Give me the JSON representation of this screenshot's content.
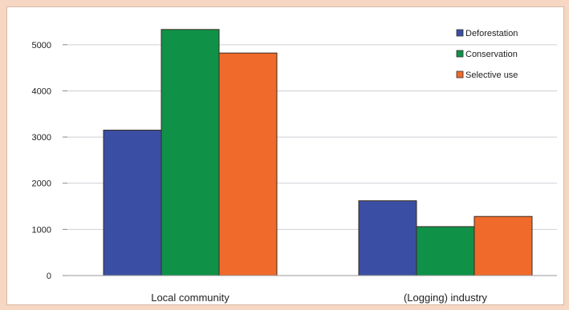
{
  "chart_data": {
    "type": "bar",
    "categories": [
      "Local community",
      "(Logging) industry"
    ],
    "series": [
      {
        "name": "Deforestation",
        "color": "#3a4fa3",
        "values": [
          3150,
          1620
        ]
      },
      {
        "name": "Conservation",
        "color": "#0f9148",
        "values": [
          5330,
          1060
        ]
      },
      {
        "name": "Selective use",
        "color": "#f06a2c",
        "values": [
          4820,
          1280
        ]
      }
    ],
    "yticks": [
      "0",
      "1000",
      "2000",
      "3000",
      "4000",
      "5000"
    ],
    "ylim": [
      0,
      5500
    ],
    "grid": true,
    "legend_position": "top-right",
    "title": "",
    "xlabel": "",
    "ylabel": ""
  }
}
